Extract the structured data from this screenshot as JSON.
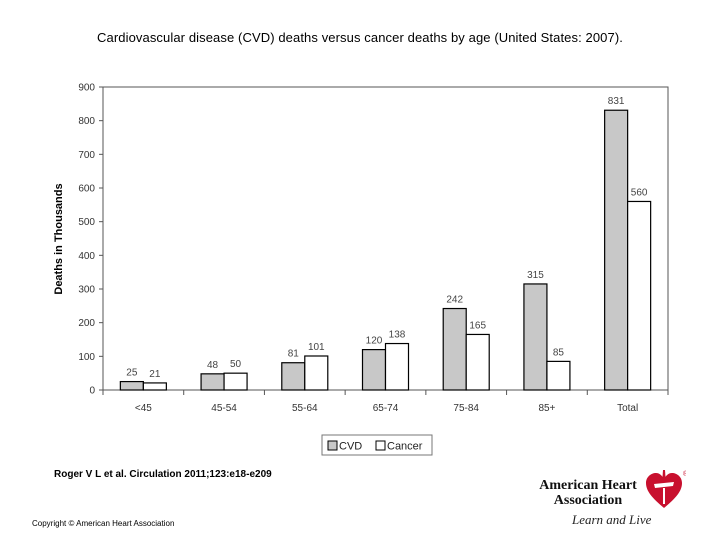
{
  "slide": {
    "title": "Cardiovascular disease (CVD) deaths versus cancer deaths by age (United States: 2007).",
    "citation": "Roger V L et al. Circulation 2011;123:e18-e209",
    "copyright": "Copyright © American Heart Association"
  },
  "logo": {
    "name_line1": "American Heart",
    "name_line2": "Association",
    "tagline": "Learn and Live",
    "mark": "®",
    "icon": "heart-torch-icon",
    "color": "#c8102e"
  },
  "chart_data": {
    "type": "bar",
    "title": "",
    "xlabel": "",
    "ylabel": "Deaths in Thousands",
    "categories": [
      "<45",
      "45-54",
      "55-64",
      "65-74",
      "75-84",
      "85+",
      "Total"
    ],
    "series": [
      {
        "name": "CVD",
        "color": "#c8c8c8",
        "values": [
          25,
          48,
          81,
          120,
          242,
          315,
          831
        ]
      },
      {
        "name": "Cancer",
        "color": "#ffffff",
        "values": [
          21,
          50,
          101,
          138,
          165,
          85,
          560
        ]
      }
    ],
    "ylim": [
      0,
      900
    ],
    "yticks": [
      0,
      100,
      200,
      300,
      400,
      500,
      600,
      700,
      800,
      900
    ],
    "grid": false,
    "legend": "bottom"
  }
}
